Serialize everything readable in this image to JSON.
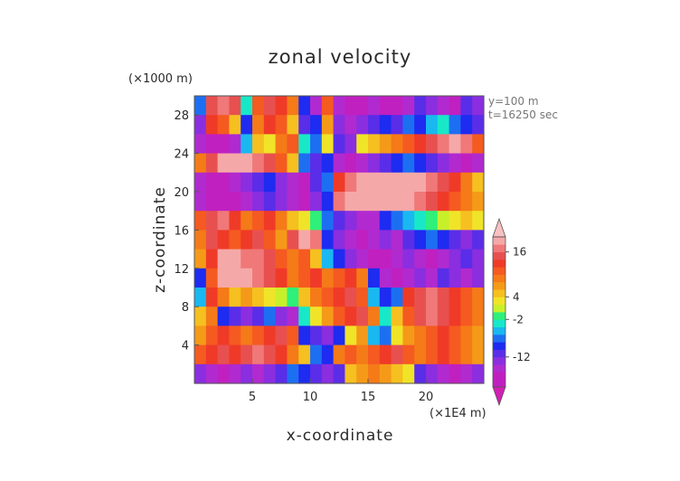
{
  "chart_data": {
    "type": "heatmap",
    "title": "zonal velocity",
    "xlabel": "x-coordinate",
    "ylabel": "z-coordinate",
    "x_unit": "(×1E4 m)",
    "y_unit": "(×1000 m)",
    "annotations": [
      "y=100  m",
      "t=16250 sec"
    ],
    "xlim": [
      0,
      25
    ],
    "ylim": [
      0,
      30
    ],
    "x_ticks": [
      5,
      10,
      15,
      20
    ],
    "y_ticks": [
      4,
      8,
      12,
      16,
      20,
      24,
      28
    ],
    "grid": false,
    "colorbar": {
      "position": "right",
      "tick_labels": [
        "16",
        "4",
        "-2",
        "-12"
      ],
      "tick_values": [
        16,
        4,
        -2,
        -12
      ],
      "levels": [
        -20,
        -16,
        -14,
        -12,
        -10,
        -8,
        -6,
        -4,
        -2,
        0,
        2,
        4,
        6,
        8,
        10,
        12,
        14,
        16,
        18,
        20
      ],
      "colors": [
        "#c020c0",
        "#b02ad0",
        "#8a2ee0",
        "#5a2de8",
        "#1e2bf0",
        "#1d6ff2",
        "#19b8f0",
        "#18e8c8",
        "#2ef07a",
        "#c8f02a",
        "#f0e428",
        "#f5c020",
        "#f59a18",
        "#f57a18",
        "#f55a20",
        "#f03a28",
        "#e85050",
        "#f07878",
        "#f5a8a8"
      ],
      "under_color": "#d31fb5",
      "over_color": "#f8c0c0"
    },
    "field_description": "zonal velocity field estimated by horizontal bands",
    "bands": [
      {
        "z": [
          28,
          30
        ],
        "values": [
          -8,
          14,
          16,
          14,
          -4,
          10,
          14,
          12,
          8,
          -10,
          -16,
          10,
          -16,
          -18,
          -18,
          -16,
          -18,
          -18,
          -16,
          -12,
          -14,
          -16,
          -18,
          -12,
          -14
        ]
      },
      {
        "z": [
          26,
          28
        ],
        "values": [
          -14,
          12,
          10,
          4,
          -10,
          8,
          12,
          10,
          4,
          -12,
          -10,
          6,
          -14,
          -16,
          -14,
          -12,
          -10,
          -12,
          -8,
          -10,
          -6,
          -4,
          -8,
          -10,
          -12
        ]
      },
      {
        "z": [
          24,
          26
        ],
        "values": [
          -16,
          -18,
          -18,
          -16,
          -6,
          4,
          2,
          8,
          10,
          -4,
          -8,
          2,
          -12,
          -14,
          2,
          4,
          6,
          8,
          10,
          12,
          14,
          16,
          18,
          16,
          10
        ]
      },
      {
        "z": [
          22,
          24
        ],
        "values": [
          8,
          14,
          18,
          18,
          18,
          16,
          14,
          10,
          4,
          -8,
          -12,
          -10,
          -16,
          -18,
          -16,
          -14,
          -12,
          -10,
          -8,
          -10,
          -12,
          -14,
          -16,
          -18,
          -16
        ]
      },
      {
        "z": [
          20,
          22
        ],
        "values": [
          -16,
          -18,
          -18,
          -16,
          -14,
          -12,
          -10,
          -14,
          -16,
          -18,
          -12,
          -8,
          12,
          16,
          18,
          18,
          18,
          18,
          18,
          18,
          16,
          14,
          12,
          8,
          4
        ]
      },
      {
        "z": [
          18,
          20
        ],
        "values": [
          -16,
          -18,
          -18,
          -18,
          -16,
          -14,
          -12,
          -14,
          -16,
          -18,
          -14,
          -10,
          16,
          18,
          18,
          18,
          18,
          18,
          18,
          16,
          14,
          12,
          10,
          8,
          6
        ]
      },
      {
        "z": [
          16,
          18
        ],
        "values": [
          10,
          14,
          16,
          12,
          8,
          10,
          12,
          8,
          4,
          2,
          -2,
          -8,
          -12,
          -14,
          -16,
          -16,
          -10,
          -8,
          -6,
          -4,
          -2,
          0,
          2,
          4,
          2
        ]
      },
      {
        "z": [
          14,
          16
        ],
        "values": [
          8,
          14,
          12,
          10,
          12,
          14,
          10,
          6,
          14,
          18,
          16,
          -10,
          -14,
          -16,
          -18,
          -16,
          -14,
          -16,
          -12,
          -10,
          -8,
          -10,
          -12,
          -14,
          -12
        ]
      },
      {
        "z": [
          12,
          14
        ],
        "values": [
          6,
          12,
          18,
          18,
          16,
          16,
          14,
          10,
          8,
          10,
          4,
          -6,
          -10,
          -14,
          -16,
          -18,
          -18,
          -16,
          -14,
          -16,
          -18,
          -16,
          -14,
          -12,
          -14
        ]
      },
      {
        "z": [
          10,
          12
        ],
        "values": [
          -10,
          10,
          18,
          18,
          18,
          16,
          14,
          12,
          8,
          10,
          12,
          8,
          10,
          12,
          8,
          -10,
          -16,
          -18,
          -16,
          -14,
          -16,
          -12,
          -14,
          -16,
          -14
        ]
      },
      {
        "z": [
          8,
          10
        ],
        "values": [
          -6,
          12,
          8,
          4,
          6,
          4,
          2,
          0,
          -2,
          4,
          8,
          10,
          12,
          14,
          10,
          -6,
          -10,
          -8,
          12,
          14,
          16,
          14,
          12,
          10,
          8
        ]
      },
      {
        "z": [
          6,
          8
        ],
        "values": [
          4,
          8,
          -10,
          -12,
          -14,
          -12,
          -8,
          -14,
          -16,
          -4,
          2,
          6,
          10,
          12,
          14,
          8,
          -4,
          4,
          10,
          14,
          16,
          14,
          12,
          10,
          8
        ]
      },
      {
        "z": [
          4,
          6
        ],
        "values": [
          6,
          10,
          12,
          10,
          8,
          10,
          12,
          14,
          10,
          -10,
          -12,
          -14,
          -10,
          2,
          6,
          -6,
          -8,
          2,
          6,
          8,
          10,
          12,
          10,
          8,
          6
        ]
      },
      {
        "z": [
          2,
          4
        ],
        "values": [
          10,
          12,
          14,
          12,
          14,
          16,
          14,
          12,
          8,
          4,
          -8,
          -10,
          8,
          10,
          8,
          10,
          12,
          14,
          10,
          8,
          10,
          12,
          10,
          8,
          6
        ]
      },
      {
        "z": [
          0,
          2
        ],
        "values": [
          -14,
          -16,
          -18,
          -16,
          -14,
          -16,
          -14,
          -12,
          -8,
          -10,
          -12,
          -14,
          -12,
          4,
          6,
          8,
          6,
          4,
          2,
          -12,
          -14,
          -16,
          -18,
          -16,
          -14
        ]
      }
    ]
  }
}
